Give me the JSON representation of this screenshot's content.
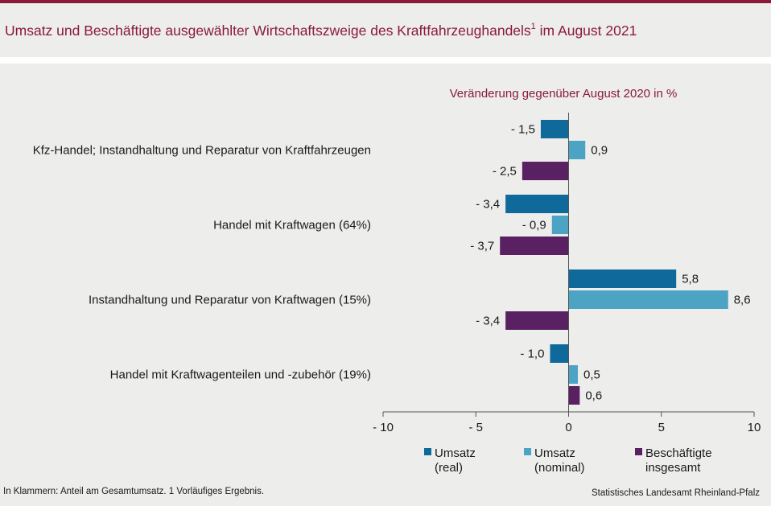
{
  "title": {
    "text": "Umsatz und Beschäftigte ausgewählter Wirtschaftszweige des Kraftfahrzeughandels",
    "superscript": "1",
    "suffix": "im August 2021"
  },
  "footnote": "In Klammern: Anteil am Gesamtumsatz. 1 Vorläufiges Ergebnis.",
  "source": "Statistisches Landesamt Rheinland-Pfalz",
  "colors": {
    "title": "#8b1a3a",
    "umsatz_real": "#0f6a9b",
    "umsatz_nominal": "#4da3c3",
    "beschaeftigte": "#5a2162"
  },
  "chart_data": {
    "type": "bar",
    "orientation": "horizontal",
    "subtitle": "Veränderung gegenüber August 2020 in %",
    "categories": [
      "Kfz-Handel; Instandhaltung und Reparatur von Kraftfahrzeugen",
      "Handel mit Kraftwagen (64%)",
      "Instandhaltung und Reparatur von Kraftwagen (15%)",
      "Handel mit Kraftwagenteilen und -zubehör (19%)"
    ],
    "series": [
      {
        "name": "Umsatz (real)",
        "legend_lines": [
          "Umsatz",
          "(real)"
        ],
        "color": "#0f6a9b",
        "values": [
          -1.5,
          -3.4,
          5.8,
          -1.0
        ],
        "labels": [
          "- 1,5",
          "- 3,4",
          "5,8",
          "- 1,0"
        ]
      },
      {
        "name": "Umsatz (nominal)",
        "legend_lines": [
          "Umsatz",
          "(nominal)"
        ],
        "color": "#4da3c3",
        "values": [
          0.9,
          -0.9,
          8.6,
          0.5
        ],
        "labels": [
          "0,9",
          "- 0,9",
          "8,6",
          "0,5"
        ]
      },
      {
        "name": "Beschäftigte insgesamt",
        "legend_lines": [
          "Beschäftigte",
          "insgesamt"
        ],
        "color": "#5a2162",
        "values": [
          -2.5,
          -3.7,
          -3.4,
          0.6
        ],
        "labels": [
          "- 2,5",
          "- 3,7",
          "- 3,4",
          "0,6"
        ]
      }
    ],
    "xlim": [
      -10,
      10
    ],
    "xticks": [
      -10,
      -5,
      0,
      5,
      10
    ],
    "xtick_labels": [
      "- 10",
      "- 5",
      "0",
      "5",
      "10"
    ],
    "legend_position": "bottom"
  }
}
